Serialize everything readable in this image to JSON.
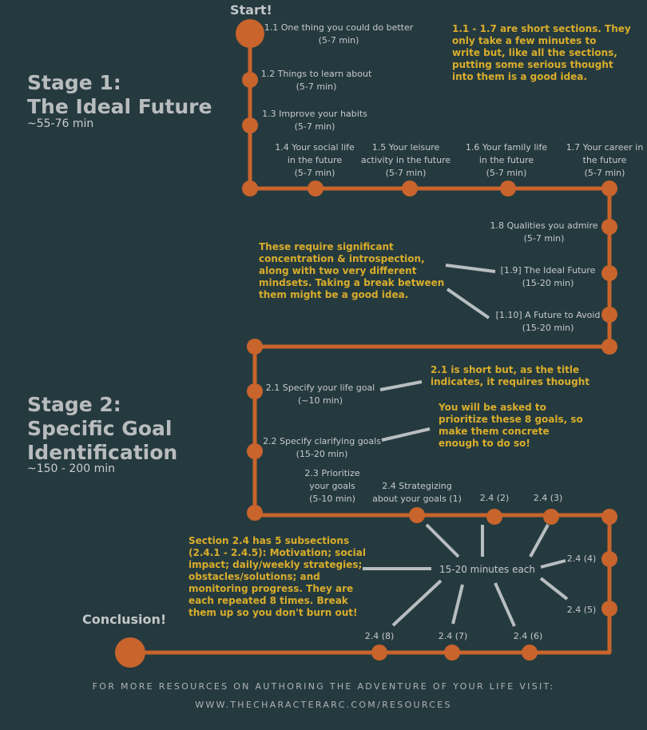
{
  "start_label": "Start!",
  "conclusion_label": "Conclusion!",
  "stage1": {
    "title_line1": "Stage 1:",
    "title_line2": "The Ideal Future",
    "time": "~55-76 min"
  },
  "stage2": {
    "title_line1": "Stage 2:",
    "title_line2": "Specific Goal",
    "title_line3": "Identification",
    "time": "~150 - 200 min"
  },
  "steps": [
    {
      "l1": "1.1 One thing you could do better",
      "l2": "(5-7 min)"
    },
    {
      "l1": "1.2 Things to learn about",
      "l2": "(5-7 min)"
    },
    {
      "l1": "1.3 Improve your habits",
      "l2": "(5-7 min)"
    },
    {
      "l1": "1.4 Your social life",
      "l2": "in the future",
      "l3": "(5-7 min)"
    },
    {
      "l1": "1.5 Your leisure",
      "l2": "activity in the future",
      "l3": "(5-7 min)"
    },
    {
      "l1": "1.6 Your family life",
      "l2": "in the future",
      "l3": "(5-7 min)"
    },
    {
      "l1": "1.7 Your career in",
      "l2": "the future",
      "l3": "(5-7 min)"
    },
    {
      "l1": "1.8 Qualities you admire",
      "l2": "(5-7 min)"
    },
    {
      "l1": "[1.9] The Ideal Future",
      "l2": "(15-20 min)"
    },
    {
      "l1": "[1.10] A Future to Avoid",
      "l2": "(15-20 min)"
    },
    {
      "l1": "2.1 Specify your life goal",
      "l2": "(~10 min)"
    },
    {
      "l1": "2.2 Specify clarifying goals",
      "l2": "(15-20 min)"
    },
    {
      "l1": "2.3 Prioritize",
      "l2": "your goals",
      "l3": "(5-10 min)"
    },
    {
      "l1": "2.4 Strategizing",
      "l2": "about your goals (1)"
    },
    {
      "l1": "2.4 (2)"
    },
    {
      "l1": "2.4 (3)"
    },
    {
      "l1": "2.4 (4)"
    },
    {
      "l1": "2.4 (5)"
    },
    {
      "l1": "2.4 (6)"
    },
    {
      "l1": "2.4 (7)"
    },
    {
      "l1": "2.4 (8)"
    }
  ],
  "hub_label": "15-20 minutes each",
  "notes": [
    {
      "lines": [
        "1.1 - 1.7 are short sections. They",
        "only take a few minutes to",
        "write but, like all the sections,",
        "putting some serious thought",
        "into them is a good idea."
      ]
    },
    {
      "lines": [
        "These require significant",
        "concentration & introspection,",
        "along with two very different",
        "mindsets. Taking a break between",
        "them might be a good idea."
      ]
    },
    {
      "lines": [
        "2.1 is short but, as the title",
        "indicates, it requires thought"
      ]
    },
    {
      "lines": [
        "You will be asked to",
        "prioritize these 8 goals, so",
        "make them concrete",
        "enough to do so!"
      ]
    },
    {
      "lines": [
        "Section 2.4 has 5 subsections",
        "(2.4.1 - 2.4.5): Motivation; social",
        "impact; daily/weekly strategies;",
        "obstacles/solutions; and",
        "monitoring progress. They are",
        "each repeated 8 times. Break",
        "them up so you don't burn out!"
      ]
    }
  ],
  "footer": {
    "line1": "FOR MORE RESOURCES ON AUTHORING THE ADVENTURE OF YOUR LIFE VISIT:",
    "line2": "WWW.THECHARACTERARC.COM/RESOURCES"
  },
  "colors": {
    "background": "#253a3f",
    "path": "#c8642c",
    "accent_text": "#d9ad2b",
    "label_text": "#c6c9cb",
    "connector": "#b8bec0"
  }
}
